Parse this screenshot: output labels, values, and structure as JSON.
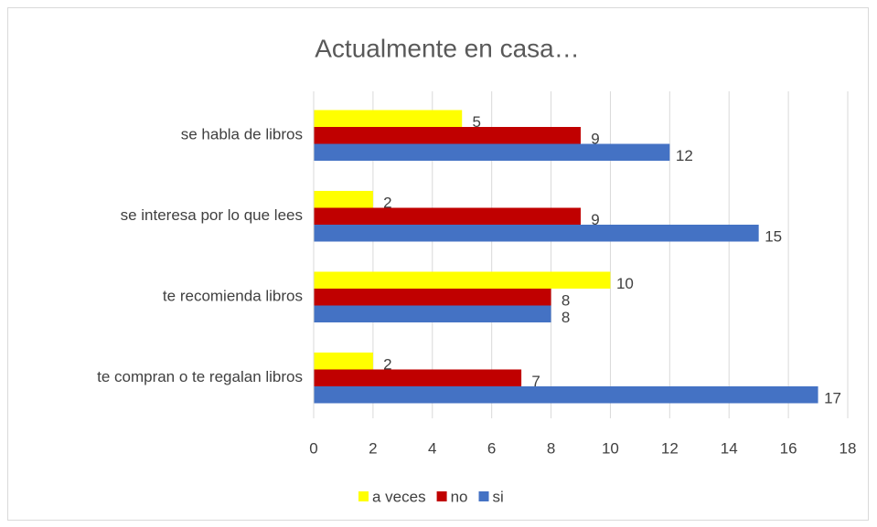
{
  "chart_data": {
    "type": "bar",
    "orientation": "horizontal",
    "title": "Actualmente en casa…",
    "categories": [
      "se habla de libros",
      "se interesa por lo que lees",
      "te recomienda libros",
      "te compran o te regalan libros"
    ],
    "series": [
      {
        "name": "a veces",
        "color": "#ffff00",
        "values": [
          5,
          2,
          10,
          2
        ]
      },
      {
        "name": "no",
        "color": "#c00000",
        "values": [
          9,
          9,
          8,
          7
        ]
      },
      {
        "name": "si",
        "color": "#4472c4",
        "values": [
          12,
          15,
          8,
          17
        ]
      }
    ],
    "xlim": [
      0,
      18
    ],
    "xticks": [
      0,
      2,
      4,
      6,
      8,
      10,
      12,
      14,
      16,
      18
    ],
    "grid": true,
    "legend": "bottom"
  }
}
